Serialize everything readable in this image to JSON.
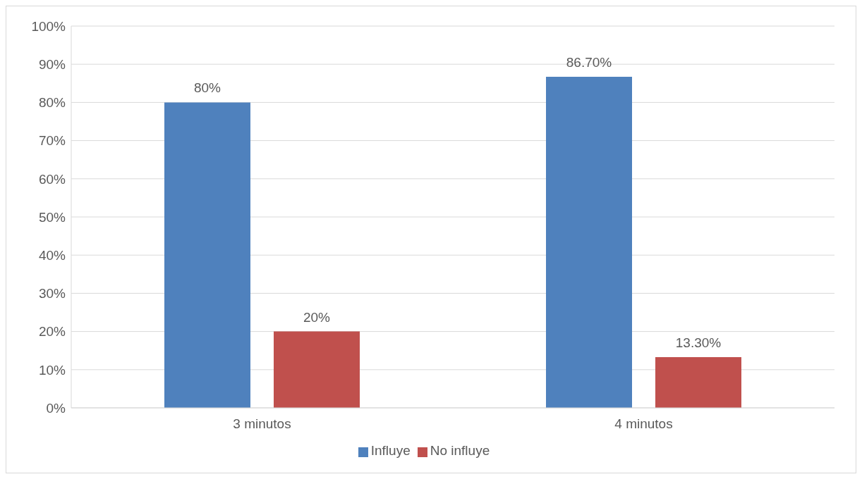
{
  "chart_data": {
    "type": "bar",
    "categories": [
      "3 minutos",
      "4 minutos"
    ],
    "series": [
      {
        "name": "Influye",
        "color": "#4f81bd",
        "values": [
          80,
          86.7
        ],
        "value_labels": [
          "80%",
          "86.70%"
        ]
      },
      {
        "name": "No influye",
        "color": "#c0504d",
        "values": [
          20,
          13.3
        ],
        "value_labels": [
          "20%",
          "13.30%"
        ]
      }
    ],
    "ylim": [
      0,
      100
    ],
    "yticks": [
      {
        "value": 0,
        "label": "0%"
      },
      {
        "value": 10,
        "label": "10%"
      },
      {
        "value": 20,
        "label": "20%"
      },
      {
        "value": 30,
        "label": "30%"
      },
      {
        "value": 40,
        "label": "40%"
      },
      {
        "value": 50,
        "label": "50%"
      },
      {
        "value": 60,
        "label": "60%"
      },
      {
        "value": 70,
        "label": "70%"
      },
      {
        "value": 80,
        "label": "80%"
      },
      {
        "value": 90,
        "label": "90%"
      },
      {
        "value": 100,
        "label": "100%"
      }
    ],
    "grid": "y",
    "legend": "bottom"
  }
}
